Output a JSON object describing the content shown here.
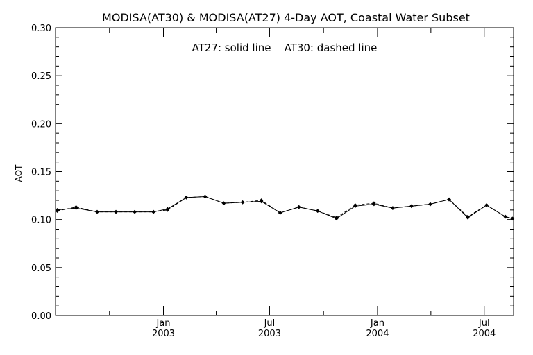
{
  "chart_data": {
    "type": "line",
    "title": "MODISA(AT30) & MODISA(AT27) 4-Day AOT, Coastal Water Subset",
    "annotation": "AT27: solid line    AT30: dashed line",
    "ylabel": "AOT",
    "xlabel": "",
    "ylim": [
      0.0,
      0.3
    ],
    "xlim": [
      "2002-07-01",
      "2004-08-20"
    ],
    "grid": false,
    "y_ticks": [
      "0.00",
      "0.05",
      "0.10",
      "0.15",
      "0.20",
      "0.25",
      "0.30"
    ],
    "x_ticks": [
      {
        "month": "Jan",
        "year": "2003",
        "date": "2003-01-01"
      },
      {
        "month": "Jul",
        "year": "2003",
        "date": "2003-07-01"
      },
      {
        "month": "Jan",
        "year": "2004",
        "date": "2004-01-01"
      },
      {
        "month": "Jul",
        "year": "2004",
        "date": "2004-07-01"
      }
    ],
    "series": [
      {
        "name": "AT27",
        "style": "solid",
        "color": "#000000",
        "x": [
          "2002-07-04",
          "2002-08-05",
          "2002-09-10",
          "2002-10-12",
          "2002-11-13",
          "2002-12-15",
          "2003-01-08",
          "2003-02-09",
          "2003-03-13",
          "2003-04-14",
          "2003-05-16",
          "2003-06-17",
          "2003-07-19",
          "2003-08-20",
          "2003-09-21",
          "2003-10-23",
          "2003-11-24",
          "2003-12-26",
          "2004-01-27",
          "2004-02-28",
          "2004-03-31",
          "2004-05-02",
          "2004-06-03",
          "2004-07-05",
          "2004-08-06",
          "2004-08-18"
        ],
        "y": [
          0.11,
          0.112,
          0.108,
          0.108,
          0.108,
          0.108,
          0.111,
          0.123,
          0.124,
          0.117,
          0.118,
          0.119,
          0.107,
          0.113,
          0.109,
          0.101,
          0.114,
          0.116,
          0.112,
          0.114,
          0.116,
          0.121,
          0.102,
          0.115,
          0.103,
          0.101
        ]
      },
      {
        "name": "AT30",
        "style": "dashed",
        "color": "#000000",
        "x": [
          "2002-07-04",
          "2002-08-05",
          "2002-09-10",
          "2002-10-12",
          "2002-11-13",
          "2002-12-15",
          "2003-01-08",
          "2003-02-09",
          "2003-03-13",
          "2003-04-14",
          "2003-05-16",
          "2003-06-17",
          "2003-07-19",
          "2003-08-20",
          "2003-09-21",
          "2003-10-23",
          "2003-11-24",
          "2003-12-26",
          "2004-01-27",
          "2004-02-28",
          "2004-03-31",
          "2004-05-02",
          "2004-06-03",
          "2004-07-05",
          "2004-08-06",
          "2004-08-18"
        ],
        "y": [
          0.109,
          0.113,
          0.108,
          0.108,
          0.108,
          0.108,
          0.11,
          0.123,
          0.124,
          0.117,
          0.118,
          0.12,
          0.107,
          0.113,
          0.109,
          0.102,
          0.115,
          0.117,
          0.112,
          0.114,
          0.116,
          0.121,
          0.103,
          0.115,
          0.103,
          0.101
        ]
      }
    ]
  }
}
